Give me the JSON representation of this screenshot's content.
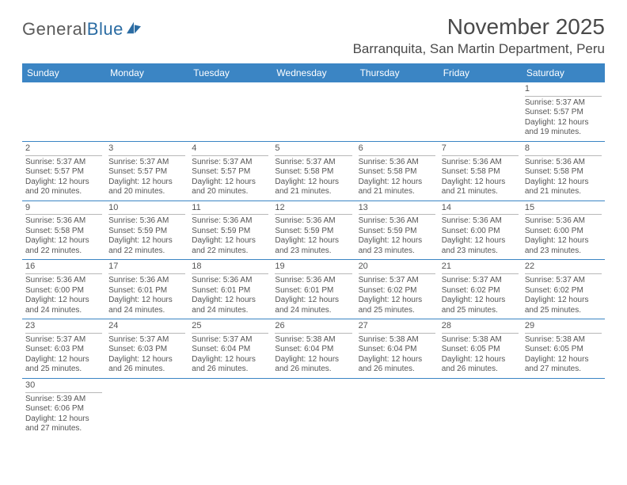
{
  "logo": {
    "text_a": "General",
    "text_b": "Blue"
  },
  "title": "November 2025",
  "location": "Barranquita, San Martin Department, Peru",
  "header_bg": "#3b85c4",
  "dow": [
    "Sunday",
    "Monday",
    "Tuesday",
    "Wednesday",
    "Thursday",
    "Friday",
    "Saturday"
  ],
  "weeks": [
    [
      null,
      null,
      null,
      null,
      null,
      null,
      {
        "n": "1",
        "sr": "5:37 AM",
        "ss": "5:57 PM",
        "dl": "12 hours and 19 minutes."
      }
    ],
    [
      {
        "n": "2",
        "sr": "5:37 AM",
        "ss": "5:57 PM",
        "dl": "12 hours and 20 minutes."
      },
      {
        "n": "3",
        "sr": "5:37 AM",
        "ss": "5:57 PM",
        "dl": "12 hours and 20 minutes."
      },
      {
        "n": "4",
        "sr": "5:37 AM",
        "ss": "5:57 PM",
        "dl": "12 hours and 20 minutes."
      },
      {
        "n": "5",
        "sr": "5:37 AM",
        "ss": "5:58 PM",
        "dl": "12 hours and 21 minutes."
      },
      {
        "n": "6",
        "sr": "5:36 AM",
        "ss": "5:58 PM",
        "dl": "12 hours and 21 minutes."
      },
      {
        "n": "7",
        "sr": "5:36 AM",
        "ss": "5:58 PM",
        "dl": "12 hours and 21 minutes."
      },
      {
        "n": "8",
        "sr": "5:36 AM",
        "ss": "5:58 PM",
        "dl": "12 hours and 21 minutes."
      }
    ],
    [
      {
        "n": "9",
        "sr": "5:36 AM",
        "ss": "5:58 PM",
        "dl": "12 hours and 22 minutes."
      },
      {
        "n": "10",
        "sr": "5:36 AM",
        "ss": "5:59 PM",
        "dl": "12 hours and 22 minutes."
      },
      {
        "n": "11",
        "sr": "5:36 AM",
        "ss": "5:59 PM",
        "dl": "12 hours and 22 minutes."
      },
      {
        "n": "12",
        "sr": "5:36 AM",
        "ss": "5:59 PM",
        "dl": "12 hours and 23 minutes."
      },
      {
        "n": "13",
        "sr": "5:36 AM",
        "ss": "5:59 PM",
        "dl": "12 hours and 23 minutes."
      },
      {
        "n": "14",
        "sr": "5:36 AM",
        "ss": "6:00 PM",
        "dl": "12 hours and 23 minutes."
      },
      {
        "n": "15",
        "sr": "5:36 AM",
        "ss": "6:00 PM",
        "dl": "12 hours and 23 minutes."
      }
    ],
    [
      {
        "n": "16",
        "sr": "5:36 AM",
        "ss": "6:00 PM",
        "dl": "12 hours and 24 minutes."
      },
      {
        "n": "17",
        "sr": "5:36 AM",
        "ss": "6:01 PM",
        "dl": "12 hours and 24 minutes."
      },
      {
        "n": "18",
        "sr": "5:36 AM",
        "ss": "6:01 PM",
        "dl": "12 hours and 24 minutes."
      },
      {
        "n": "19",
        "sr": "5:36 AM",
        "ss": "6:01 PM",
        "dl": "12 hours and 24 minutes."
      },
      {
        "n": "20",
        "sr": "5:37 AM",
        "ss": "6:02 PM",
        "dl": "12 hours and 25 minutes."
      },
      {
        "n": "21",
        "sr": "5:37 AM",
        "ss": "6:02 PM",
        "dl": "12 hours and 25 minutes."
      },
      {
        "n": "22",
        "sr": "5:37 AM",
        "ss": "6:02 PM",
        "dl": "12 hours and 25 minutes."
      }
    ],
    [
      {
        "n": "23",
        "sr": "5:37 AM",
        "ss": "6:03 PM",
        "dl": "12 hours and 25 minutes."
      },
      {
        "n": "24",
        "sr": "5:37 AM",
        "ss": "6:03 PM",
        "dl": "12 hours and 26 minutes."
      },
      {
        "n": "25",
        "sr": "5:37 AM",
        "ss": "6:04 PM",
        "dl": "12 hours and 26 minutes."
      },
      {
        "n": "26",
        "sr": "5:38 AM",
        "ss": "6:04 PM",
        "dl": "12 hours and 26 minutes."
      },
      {
        "n": "27",
        "sr": "5:38 AM",
        "ss": "6:04 PM",
        "dl": "12 hours and 26 minutes."
      },
      {
        "n": "28",
        "sr": "5:38 AM",
        "ss": "6:05 PM",
        "dl": "12 hours and 26 minutes."
      },
      {
        "n": "29",
        "sr": "5:38 AM",
        "ss": "6:05 PM",
        "dl": "12 hours and 27 minutes."
      }
    ],
    [
      {
        "n": "30",
        "sr": "5:39 AM",
        "ss": "6:06 PM",
        "dl": "12 hours and 27 minutes."
      },
      null,
      null,
      null,
      null,
      null,
      null
    ]
  ],
  "labels": {
    "sunrise": "Sunrise:",
    "sunset": "Sunset:",
    "daylight": "Daylight:"
  }
}
